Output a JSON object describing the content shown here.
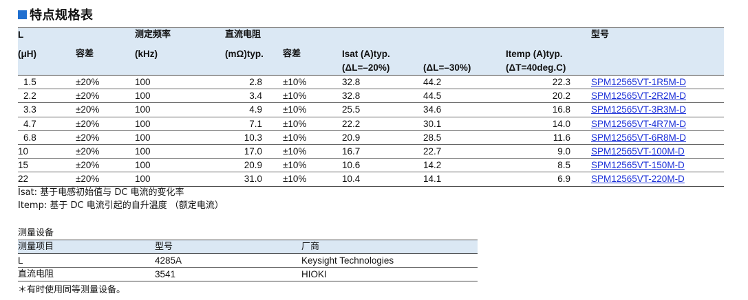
{
  "section_title": "特点规格表",
  "spec_table": {
    "headers": {
      "L_line1": "L",
      "L_line2": "(μH)",
      "tolerance1": "容差",
      "freq_line1": "测定频率",
      "freq_line2": "(kHz)",
      "dcr_line1": "直流电阻",
      "dcr_line2": "(mΩ)typ.",
      "tolerance2": "容差",
      "isat_line1": "Isat (A)typ.",
      "isat_sub1": "(ΔL=–20%)",
      "isat_sub2": "(ΔL=–30%)",
      "itemp_line1": "Itemp (A)typ.",
      "itemp_line2": "(ΔT=40deg.C)",
      "model": "型号"
    },
    "rows": [
      {
        "L": "1.5",
        "tol": "±20%",
        "freq": "100",
        "dcr": "2.8",
        "tol2": "±10%",
        "isat20": "32.8",
        "isat30": "44.2",
        "itemp": "22.3",
        "model": "SPM12565VT-1R5M-D"
      },
      {
        "L": "2.2",
        "tol": "±20%",
        "freq": "100",
        "dcr": "3.4",
        "tol2": "±10%",
        "isat20": "32.8",
        "isat30": "44.5",
        "itemp": "20.2",
        "model": "SPM12565VT-2R2M-D"
      },
      {
        "L": "3.3",
        "tol": "±20%",
        "freq": "100",
        "dcr": "4.9",
        "tol2": "±10%",
        "isat20": "25.5",
        "isat30": "34.6",
        "itemp": "16.8",
        "model": "SPM12565VT-3R3M-D"
      },
      {
        "L": "4.7",
        "tol": "±20%",
        "freq": "100",
        "dcr": "7.1",
        "tol2": "±10%",
        "isat20": "22.2",
        "isat30": "30.1",
        "itemp": "14.0",
        "model": "SPM12565VT-4R7M-D"
      },
      {
        "L": "6.8",
        "tol": "±20%",
        "freq": "100",
        "dcr": "10.3",
        "tol2": "±10%",
        "isat20": "20.9",
        "isat30": "28.5",
        "itemp": "11.6",
        "model": "SPM12565VT-6R8M-D"
      },
      {
        "L": "10",
        "tol": "±20%",
        "freq": "100",
        "dcr": "17.0",
        "tol2": "±10%",
        "isat20": "16.7",
        "isat30": "22.7",
        "itemp": "9.0",
        "model": "SPM12565VT-100M-D"
      },
      {
        "L": "15",
        "tol": "±20%",
        "freq": "100",
        "dcr": "20.9",
        "tol2": "±10%",
        "isat20": "10.6",
        "isat30": "14.2",
        "itemp": "8.5",
        "model": "SPM12565VT-150M-D"
      },
      {
        "L": "22",
        "tol": "±20%",
        "freq": "100",
        "dcr": "31.0",
        "tol2": "±10%",
        "isat20": "10.4",
        "isat30": "14.1",
        "itemp": "6.9",
        "model": "SPM12565VT-220M-D"
      }
    ]
  },
  "notes": {
    "isat": "Isat: 基于电感初始值与 DC 电流的变化率",
    "itemp": "Itemp: 基于 DC 电流引起的自升温度 （额定电流）"
  },
  "measurement": {
    "title": "测量设备",
    "headers": {
      "item": "测量项目",
      "model": "型号",
      "maker": "厂商"
    },
    "rows": [
      {
        "item": "L",
        "model": "4285A",
        "maker": "Keysight Technologies"
      },
      {
        "item": "直流电阻",
        "model": "3541",
        "maker": "HIOKI"
      }
    ],
    "footnote": "＊有时使用同等测量设备。"
  }
}
